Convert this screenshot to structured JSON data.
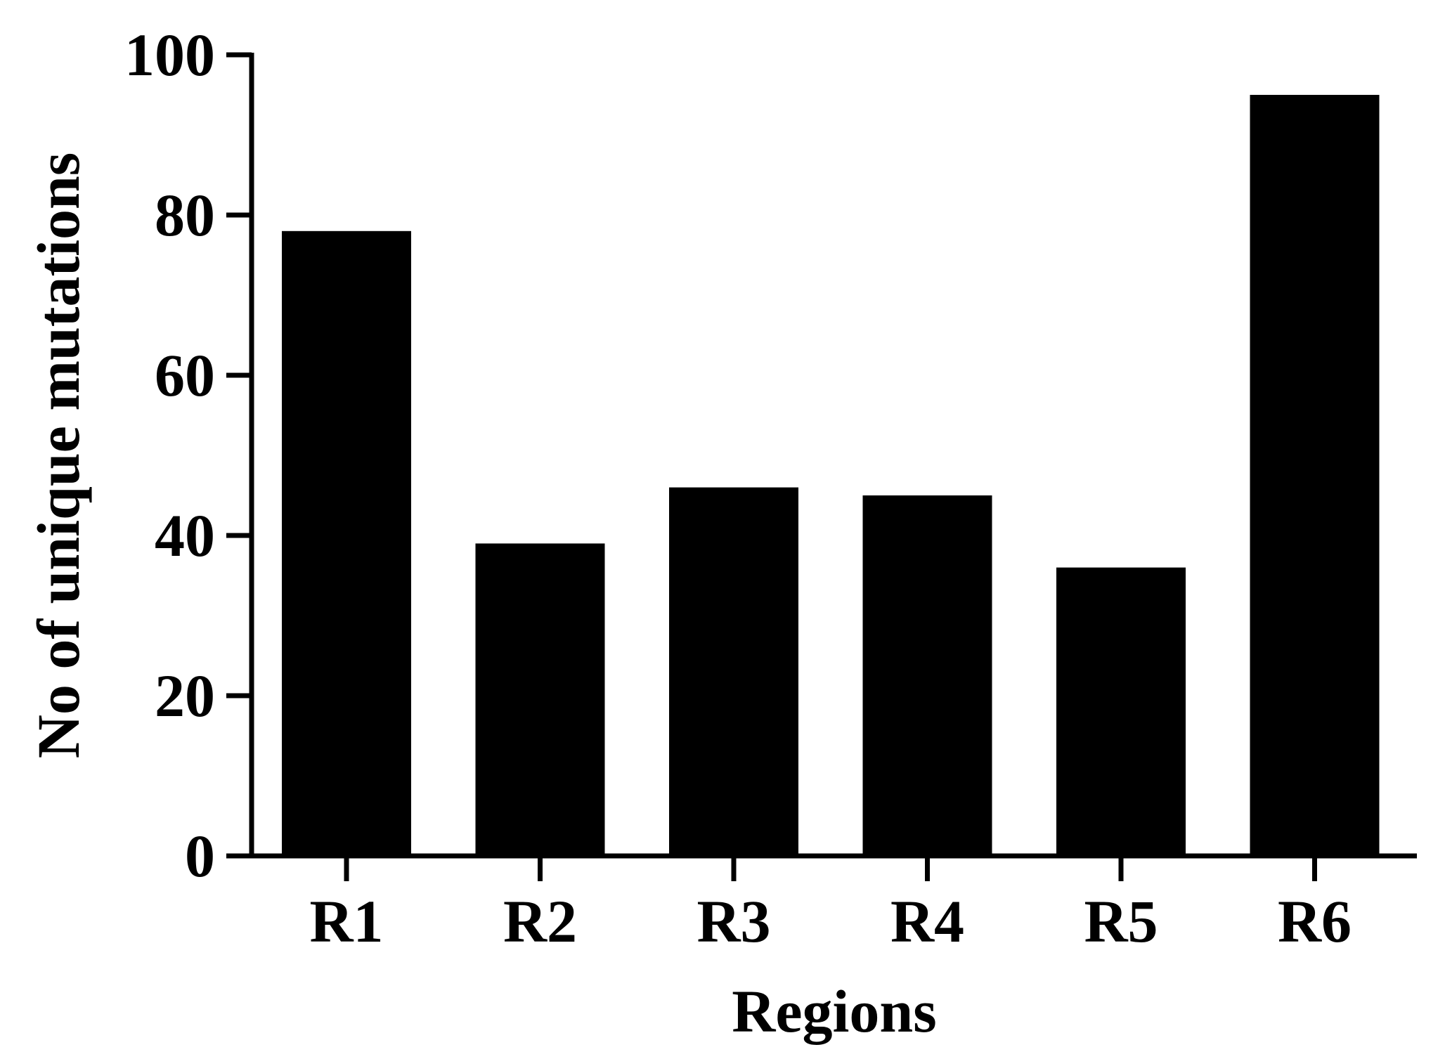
{
  "chart_data": {
    "type": "bar",
    "title": "",
    "xlabel": "Regions",
    "ylabel": "No of unique mutations",
    "categories": [
      "R1",
      "R2",
      "R3",
      "R4",
      "R5",
      "R6"
    ],
    "values": [
      78,
      39,
      46,
      45,
      36,
      95
    ],
    "ylim": [
      0,
      100
    ],
    "yticks": [
      0,
      20,
      40,
      60,
      80,
      100
    ],
    "grid": false,
    "legend": "none",
    "bar_color": "#000000",
    "axis_color": "#000000"
  }
}
